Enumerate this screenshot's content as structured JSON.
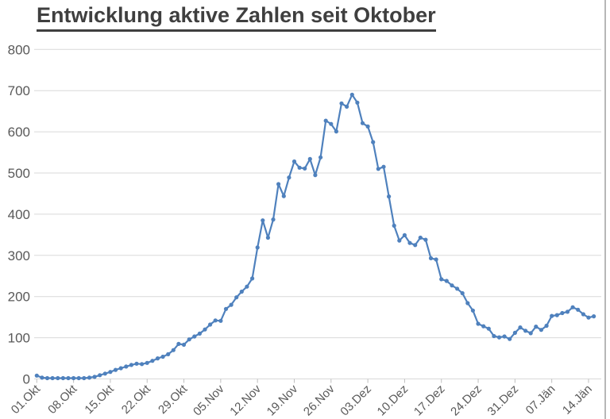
{
  "colors": {
    "line": "#4f81bd",
    "grid": "#d9d9d9",
    "tick": "#bfbfbf",
    "axis_text": "#595959",
    "title_text": "#3f3f3f",
    "window_edge": "#b7b7b7",
    "background": "#ffffff"
  },
  "chart_data": {
    "type": "line",
    "title": "Entwicklung aktive Zahlen seit Oktober",
    "xlabel": "",
    "ylabel": "",
    "ylim": [
      0,
      800
    ],
    "y_ticks": [
      0,
      100,
      200,
      300,
      400,
      500,
      600,
      700,
      800
    ],
    "grid": "horizontal",
    "legend_position": "none",
    "marker": "circle",
    "x_tick_interval_days": 7,
    "x_tick_labels": [
      "01.Okt",
      "08.Okt",
      "15.Okt",
      "22.Okt",
      "29.Okt",
      "05.Nov",
      "12.Nov",
      "19.Nov",
      "26.Nov",
      "03.Dez",
      "10.Dez",
      "17.Dez",
      "24.Dez",
      "31.Dez",
      "07.Jän",
      "14.Jän"
    ],
    "series": [
      {
        "name": "aktive Zahlen",
        "x_start_label": "01.Okt",
        "x_step": "daily",
        "values": [
          8,
          3,
          2,
          2,
          2,
          2,
          2,
          2,
          2,
          2,
          3,
          5,
          9,
          13,
          17,
          22,
          26,
          30,
          34,
          37,
          36,
          39,
          44,
          50,
          54,
          60,
          70,
          85,
          83,
          96,
          103,
          110,
          120,
          132,
          142,
          141,
          170,
          180,
          198,
          212,
          224,
          244,
          319,
          385,
          343,
          387,
          473,
          444,
          489,
          528,
          513,
          511,
          534,
          495,
          538,
          627,
          619,
          601,
          669,
          661,
          690,
          671,
          621,
          613,
          575,
          510,
          515,
          443,
          372,
          336,
          349,
          330,
          325,
          343,
          338,
          293,
          290,
          242,
          238,
          227,
          219,
          208,
          184,
          166,
          134,
          128,
          122,
          104,
          101,
          103,
          97,
          112,
          125,
          117,
          111,
          127,
          119,
          129,
          153,
          155,
          160,
          163,
          174,
          168,
          157,
          149,
          152
        ]
      }
    ]
  }
}
